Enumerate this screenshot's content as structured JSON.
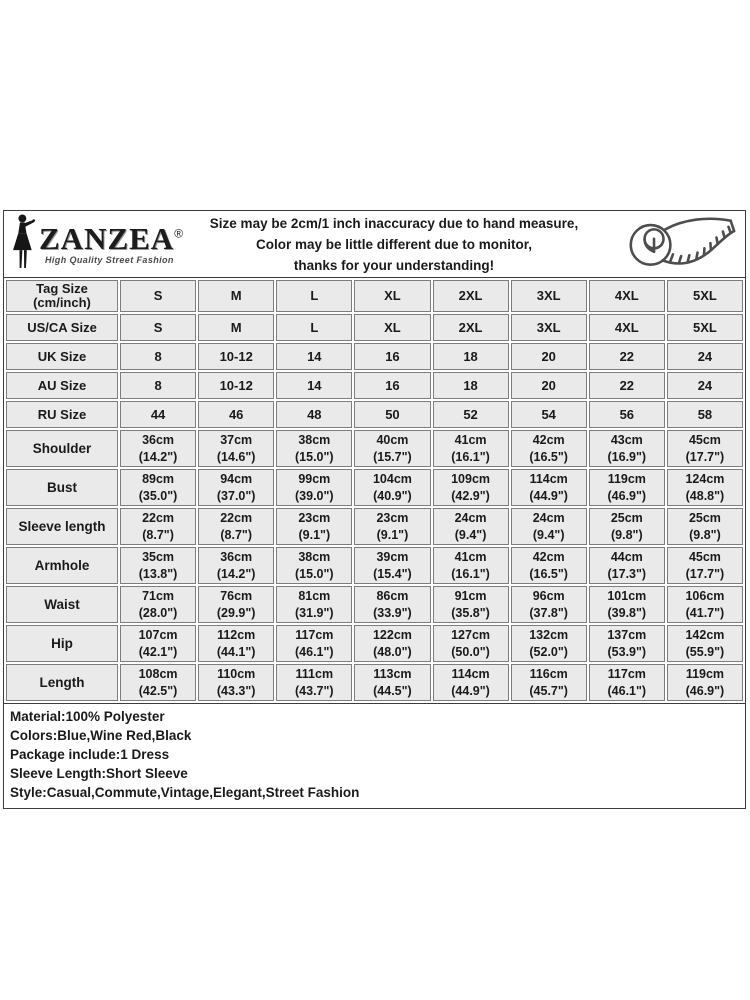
{
  "header": {
    "brand": "ZANZEA",
    "reg_mark": "®",
    "tagline": "High Quality Street Fashion",
    "disclaimer_lines": [
      "Size may be 2cm/1 inch inaccuracy due to hand measure,",
      "Color may be little different due to monitor,",
      "thanks for your understanding!"
    ]
  },
  "table": {
    "rows": [
      {
        "label": [
          "Tag Size",
          "(cm/inch)"
        ],
        "cells": [
          [
            "S"
          ],
          [
            "M"
          ],
          [
            "L"
          ],
          [
            "XL"
          ],
          [
            "2XL"
          ],
          [
            "3XL"
          ],
          [
            "4XL"
          ],
          [
            "5XL"
          ]
        ]
      },
      {
        "label": [
          "US/CA Size"
        ],
        "cells": [
          [
            "S"
          ],
          [
            "M"
          ],
          [
            "L"
          ],
          [
            "XL"
          ],
          [
            "2XL"
          ],
          [
            "3XL"
          ],
          [
            "4XL"
          ],
          [
            "5XL"
          ]
        ]
      },
      {
        "label": [
          "UK Size"
        ],
        "cells": [
          [
            "8"
          ],
          [
            "10-12"
          ],
          [
            "14"
          ],
          [
            "16"
          ],
          [
            "18"
          ],
          [
            "20"
          ],
          [
            "22"
          ],
          [
            "24"
          ]
        ]
      },
      {
        "label": [
          "AU Size"
        ],
        "cells": [
          [
            "8"
          ],
          [
            "10-12"
          ],
          [
            "14"
          ],
          [
            "16"
          ],
          [
            "18"
          ],
          [
            "20"
          ],
          [
            "22"
          ],
          [
            "24"
          ]
        ]
      },
      {
        "label": [
          "RU Size"
        ],
        "cells": [
          [
            "44"
          ],
          [
            "46"
          ],
          [
            "48"
          ],
          [
            "50"
          ],
          [
            "52"
          ],
          [
            "54"
          ],
          [
            "56"
          ],
          [
            "58"
          ]
        ]
      },
      {
        "label": [
          "Shoulder"
        ],
        "cells": [
          [
            "36cm",
            "(14.2\")"
          ],
          [
            "37cm",
            "(14.6\")"
          ],
          [
            "38cm",
            "(15.0\")"
          ],
          [
            "40cm",
            "(15.7\")"
          ],
          [
            "41cm",
            "(16.1\")"
          ],
          [
            "42cm",
            "(16.5\")"
          ],
          [
            "43cm",
            "(16.9\")"
          ],
          [
            "45cm",
            "(17.7\")"
          ]
        ]
      },
      {
        "label": [
          "Bust"
        ],
        "cells": [
          [
            "89cm",
            "(35.0\")"
          ],
          [
            "94cm",
            "(37.0\")"
          ],
          [
            "99cm",
            "(39.0\")"
          ],
          [
            "104cm",
            "(40.9\")"
          ],
          [
            "109cm",
            "(42.9\")"
          ],
          [
            "114cm",
            "(44.9\")"
          ],
          [
            "119cm",
            "(46.9\")"
          ],
          [
            "124cm",
            "(48.8\")"
          ]
        ]
      },
      {
        "label": [
          "Sleeve length"
        ],
        "cells": [
          [
            "22cm",
            "(8.7\")"
          ],
          [
            "22cm",
            "(8.7\")"
          ],
          [
            "23cm",
            "(9.1\")"
          ],
          [
            "23cm",
            "(9.1\")"
          ],
          [
            "24cm",
            "(9.4\")"
          ],
          [
            "24cm",
            "(9.4\")"
          ],
          [
            "25cm",
            "(9.8\")"
          ],
          [
            "25cm",
            "(9.8\")"
          ]
        ]
      },
      {
        "label": [
          "Armhole"
        ],
        "cells": [
          [
            "35cm",
            "(13.8\")"
          ],
          [
            "36cm",
            "(14.2\")"
          ],
          [
            "38cm",
            "(15.0\")"
          ],
          [
            "39cm",
            "(15.4\")"
          ],
          [
            "41cm",
            "(16.1\")"
          ],
          [
            "42cm",
            "(16.5\")"
          ],
          [
            "44cm",
            "(17.3\")"
          ],
          [
            "45cm",
            "(17.7\")"
          ]
        ]
      },
      {
        "label": [
          "Waist"
        ],
        "cells": [
          [
            "71cm",
            "(28.0\")"
          ],
          [
            "76cm",
            "(29.9\")"
          ],
          [
            "81cm",
            "(31.9\")"
          ],
          [
            "86cm",
            "(33.9\")"
          ],
          [
            "91cm",
            "(35.8\")"
          ],
          [
            "96cm",
            "(37.8\")"
          ],
          [
            "101cm",
            "(39.8\")"
          ],
          [
            "106cm",
            "(41.7\")"
          ]
        ]
      },
      {
        "label": [
          "Hip"
        ],
        "cells": [
          [
            "107cm",
            "(42.1\")"
          ],
          [
            "112cm",
            "(44.1\")"
          ],
          [
            "117cm",
            "(46.1\")"
          ],
          [
            "122cm",
            "(48.0\")"
          ],
          [
            "127cm",
            "(50.0\")"
          ],
          [
            "132cm",
            "(52.0\")"
          ],
          [
            "137cm",
            "(53.9\")"
          ],
          [
            "142cm",
            "(55.9\")"
          ]
        ]
      },
      {
        "label": [
          "Length"
        ],
        "cells": [
          [
            "108cm",
            "(42.5\")"
          ],
          [
            "110cm",
            "(43.3\")"
          ],
          [
            "111cm",
            "(43.7\")"
          ],
          [
            "113cm",
            "(44.5\")"
          ],
          [
            "114cm",
            "(44.9\")"
          ],
          [
            "116cm",
            "(45.7\")"
          ],
          [
            "117cm",
            "(46.1\")"
          ],
          [
            "119cm",
            "(46.9\")"
          ]
        ]
      }
    ]
  },
  "info_lines": [
    "Material:100% Polyester",
    "Colors:Blue,Wine Red,Black",
    "Package include:1 Dress",
    "Sleeve Length:Short Sleeve",
    "Style:Casual,Commute,Vintage,Elegant,Street Fashion"
  ],
  "colors": {
    "cell_bg": "#eaeaea",
    "cell_border": "#7d7d7d",
    "outer_border": "#3c3c3c",
    "text": "#1a1a1a"
  }
}
